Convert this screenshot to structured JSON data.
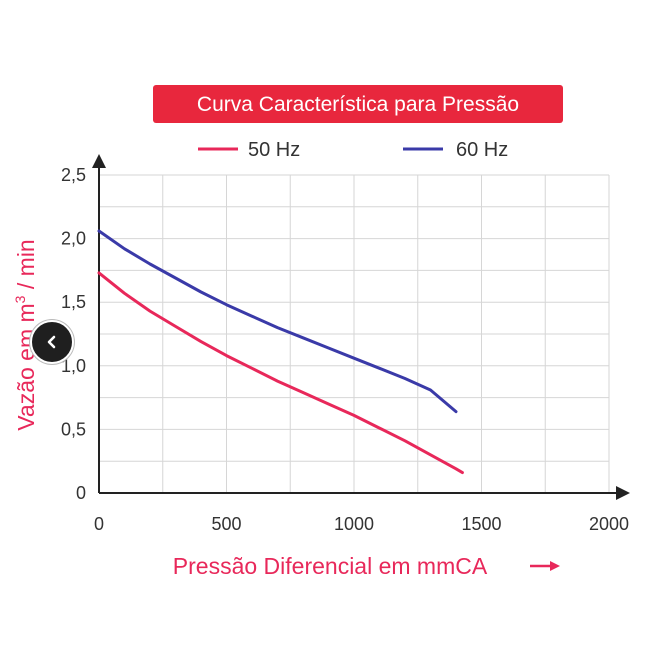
{
  "chart_data": {
    "type": "line",
    "title": "Curva Característica para Pressão",
    "xlabel": "Pressão Diferencial em mmCA",
    "ylabel_parts": {
      "before": "Vazão em m",
      "sup": "3",
      "after": " / min"
    },
    "xlim": [
      0,
      2000
    ],
    "ylim": [
      0,
      2.5
    ],
    "x_ticks": [
      {
        "value": 0,
        "label": "0"
      },
      {
        "value": 500,
        "label": "500"
      },
      {
        "value": 1000,
        "label": "1000"
      },
      {
        "value": 1500,
        "label": "1500"
      },
      {
        "value": 2000,
        "label": "2000"
      }
    ],
    "y_ticks": [
      {
        "value": 0,
        "label": "0"
      },
      {
        "value": 0.5,
        "label": "0,5"
      },
      {
        "value": 1.0,
        "label": "1,0"
      },
      {
        "value": 1.5,
        "label": "1,5"
      },
      {
        "value": 2.0,
        "label": "2,0"
      },
      {
        "value": 2.5,
        "label": "2,5"
      }
    ],
    "x_grid_step": 250,
    "y_grid_step": 0.25,
    "grid": true,
    "legend_position": "top-center",
    "series": [
      {
        "name": "50 Hz",
        "color": "#e8285a",
        "x": [
          0,
          100,
          200,
          300,
          400,
          500,
          600,
          700,
          800,
          900,
          1000,
          1100,
          1200,
          1300,
          1400,
          1425
        ],
        "y": [
          1.73,
          1.57,
          1.43,
          1.31,
          1.19,
          1.08,
          0.98,
          0.88,
          0.79,
          0.7,
          0.61,
          0.51,
          0.41,
          0.3,
          0.19,
          0.16
        ]
      },
      {
        "name": "60 Hz",
        "color": "#3a3aa8",
        "x": [
          0,
          100,
          200,
          300,
          400,
          500,
          600,
          700,
          800,
          900,
          1000,
          1100,
          1200,
          1300,
          1400
        ],
        "y": [
          2.06,
          1.92,
          1.8,
          1.69,
          1.58,
          1.48,
          1.39,
          1.3,
          1.22,
          1.14,
          1.06,
          0.98,
          0.9,
          0.81,
          0.64
        ]
      }
    ]
  },
  "colors": {
    "title_bg": "#e8273d",
    "axis": "#222222",
    "label_pink": "#e8285a",
    "grid": "#d6d6d6"
  },
  "nav": {
    "icon": "chevron-left-icon"
  }
}
